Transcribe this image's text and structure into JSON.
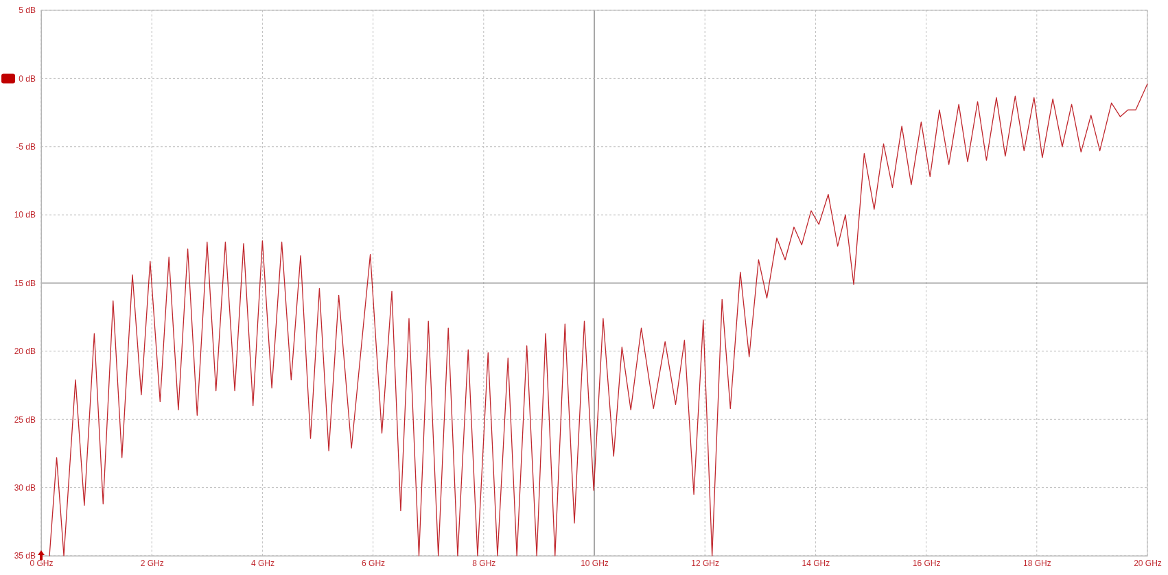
{
  "chart_data": {
    "type": "line",
    "xlim": [
      0,
      20
    ],
    "ylim": [
      -35,
      5
    ],
    "xticks": [
      {
        "value": 0,
        "label": "0 GHz"
      },
      {
        "value": 2,
        "label": "2 GHz"
      },
      {
        "value": 4,
        "label": "4 GHz"
      },
      {
        "value": 6,
        "label": "6 GHz"
      },
      {
        "value": 8,
        "label": "8 GHz"
      },
      {
        "value": 10,
        "label": "10 GHz"
      },
      {
        "value": 12,
        "label": "12 GHz"
      },
      {
        "value": 14,
        "label": "14 GHz"
      },
      {
        "value": 16,
        "label": "16 GHz"
      },
      {
        "value": 18,
        "label": "18 GHz"
      },
      {
        "value": 20,
        "label": "20 GHz"
      }
    ],
    "yticks": [
      {
        "value": 5,
        "label": "5 dB"
      },
      {
        "value": 0,
        "label": "0 dB"
      },
      {
        "value": -5,
        "label": "-5 dB"
      },
      {
        "value": -10,
        "label": "10 dB"
      },
      {
        "value": -15,
        "label": "15 dB"
      },
      {
        "value": -20,
        "label": "20 dB"
      },
      {
        "value": -25,
        "label": "25 dB"
      },
      {
        "value": -30,
        "label": "30 dB"
      },
      {
        "value": -35,
        "label": "35 dB"
      }
    ],
    "grid": true,
    "marker": "none",
    "line_style": "solid",
    "series": [
      {
        "color": "#c0272d",
        "x": [
          0.15,
          0.28,
          0.41,
          0.62,
          0.78,
          0.96,
          1.12,
          1.3,
          1.46,
          1.65,
          1.81,
          1.97,
          2.15,
          2.31,
          2.48,
          2.65,
          2.82,
          3.0,
          3.16,
          3.33,
          3.5,
          3.66,
          3.83,
          4.0,
          4.17,
          4.35,
          4.52,
          4.69,
          4.87,
          5.03,
          5.2,
          5.38,
          5.61,
          5.95,
          6.16,
          6.34,
          6.5,
          6.65,
          6.83,
          7.0,
          7.18,
          7.36,
          7.53,
          7.72,
          7.89,
          8.08,
          8.25,
          8.44,
          8.6,
          8.78,
          8.96,
          9.12,
          9.29,
          9.47,
          9.64,
          9.82,
          9.99,
          10.16,
          10.35,
          10.5,
          10.66,
          10.85,
          11.07,
          11.28,
          11.47,
          11.63,
          11.8,
          11.97,
          12.13,
          12.31,
          12.46,
          12.64,
          12.8,
          12.97,
          13.12,
          13.3,
          13.45,
          13.61,
          13.75,
          13.92,
          14.06,
          14.23,
          14.4,
          14.54,
          14.69,
          14.88,
          15.06,
          15.23,
          15.39,
          15.56,
          15.73,
          15.91,
          16.07,
          16.24,
          16.41,
          16.59,
          16.75,
          16.93,
          17.09,
          17.27,
          17.43,
          17.61,
          17.77,
          17.95,
          18.1,
          18.29,
          18.46,
          18.63,
          18.8,
          18.98,
          19.14,
          19.35,
          19.51,
          19.65,
          19.79,
          20.0
        ],
        "values": [
          -35,
          -27.8,
          -35,
          -22.1,
          -31.3,
          -18.7,
          -31.2,
          -16.3,
          -27.8,
          -14.4,
          -23.2,
          -13.4,
          -23.7,
          -13.1,
          -24.3,
          -12.5,
          -24.7,
          -12.0,
          -22.9,
          -12.0,
          -22.9,
          -12.1,
          -24.0,
          -11.9,
          -22.7,
          -12.0,
          -22.1,
          -13.0,
          -26.4,
          -15.4,
          -27.3,
          -15.9,
          -27.1,
          -12.9,
          -26.0,
          -15.6,
          -31.7,
          -17.6,
          -35,
          -17.8,
          -35,
          -18.3,
          -35,
          -19.9,
          -35,
          -20.1,
          -35,
          -20.5,
          -35,
          -19.6,
          -35,
          -18.7,
          -35,
          -18.0,
          -32.6,
          -17.8,
          -30.2,
          -17.6,
          -27.7,
          -19.7,
          -24.3,
          -18.3,
          -24.2,
          -19.3,
          -23.9,
          -19.2,
          -30.5,
          -17.7,
          -35,
          -16.2,
          -24.2,
          -14.2,
          -20.4,
          -13.3,
          -16.1,
          -11.7,
          -13.3,
          -10.9,
          -12.2,
          -9.7,
          -10.7,
          -8.5,
          -12.3,
          -10.0,
          -15.1,
          -5.5,
          -9.6,
          -4.8,
          -8.0,
          -3.5,
          -7.8,
          -3.2,
          -7.2,
          -2.3,
          -6.3,
          -1.9,
          -6.1,
          -1.7,
          -6.0,
          -1.4,
          -5.7,
          -1.3,
          -5.3,
          -1.4,
          -5.8,
          -1.5,
          -5.0,
          -1.9,
          -5.4,
          -2.7,
          -5.3,
          -1.8,
          -2.8,
          -2.3,
          -2.3,
          -0.4
        ]
      }
    ]
  }
}
